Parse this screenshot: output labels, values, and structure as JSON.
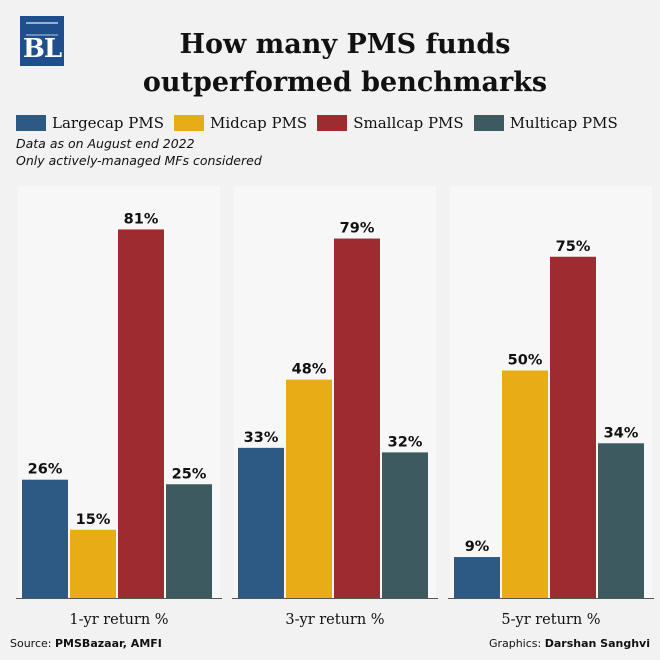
{
  "logo": {
    "text": "BL"
  },
  "title": {
    "line1": "How many PMS funds",
    "line2": "outperformed benchmarks"
  },
  "notes": {
    "line1": "Data as on August end 2022",
    "line2": "Only actively-managed MFs considered"
  },
  "footer": {
    "source_prefix": "Source:",
    "source_value": "PMSBazaar, AMFI",
    "credit_prefix": "Graphics:",
    "credit_value": "Darshan Sanghvi"
  },
  "chart_data": {
    "type": "bar",
    "title": "How many PMS funds outperformed benchmarks",
    "categories": [
      "1-yr return %",
      "3-yr return %",
      "5-yr return %"
    ],
    "series": [
      {
        "name": "Largecap PMS",
        "color": "#2c5a84",
        "values": [
          26,
          33,
          9
        ]
      },
      {
        "name": "Midcap PMS",
        "color": "#e8ad14",
        "values": [
          15,
          48,
          50
        ]
      },
      {
        "name": "Smallcap PMS",
        "color": "#9e2b2f",
        "values": [
          81,
          79,
          75
        ]
      },
      {
        "name": "Multicap PMS",
        "color": "#3d5a61",
        "values": [
          25,
          32,
          34
        ]
      }
    ],
    "value_suffix": "%",
    "ylim": [
      0,
      100
    ],
    "grid": false,
    "legend_position": "top"
  }
}
